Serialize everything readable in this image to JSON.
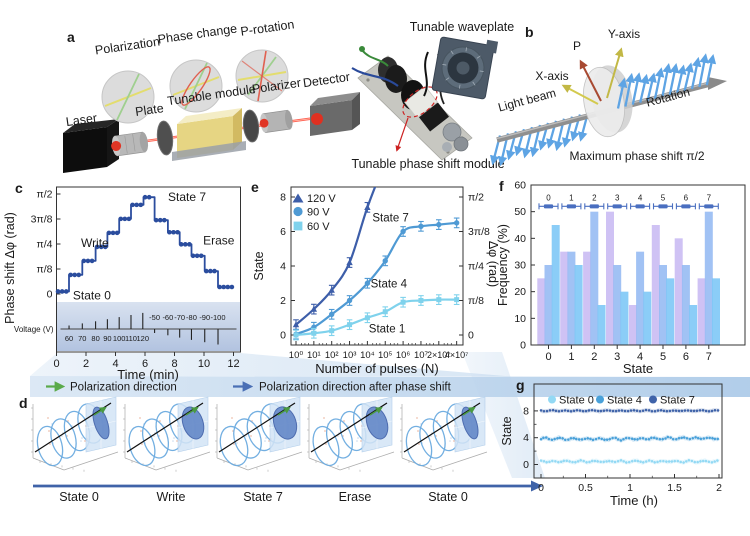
{
  "panels": {
    "a": {
      "letter": "a",
      "circle_labels": [
        "Polarization",
        "Phase change",
        "P-rotation"
      ],
      "bench_labels": [
        "Laser",
        "Plate",
        "Tunable module",
        "Polarizer",
        "Detector"
      ],
      "waveplate_label": "Tunable waveplate",
      "module_label": "Tunable phase shift module"
    },
    "b": {
      "letter": "b",
      "p_label": "P",
      "y_axis_label": "Y-axis",
      "x_axis_label": "X-axis",
      "beam_label": "Light beam",
      "rotation_label": "Rotation",
      "caption": "Maximum phase shift π/2"
    },
    "c": {
      "letter": "c"
    },
    "d": {
      "letter": "d",
      "legend": [
        {
          "label": "Polarization direction",
          "color": "#5aaa4a"
        },
        {
          "label": "Polarization direction after phase shift",
          "color": "#4a6fb5"
        }
      ],
      "sequence_labels": [
        "State 0",
        "Write",
        "State 7",
        "Erase",
        "State 0"
      ]
    },
    "e": {
      "letter": "e"
    },
    "f": {
      "letter": "f"
    },
    "g": {
      "letter": "g"
    }
  },
  "chart_data": [
    {
      "id": "c",
      "type": "line-steps",
      "ylabel": "Phase shift Δφ (rad)",
      "xlabel": "Time (min)",
      "ytick_labels": [
        "0",
        "π/8",
        "π/4",
        "3π/8",
        "π/2"
      ],
      "ytick_values": [
        0,
        0.3927,
        0.7854,
        1.1781,
        1.5708
      ],
      "xticks": [
        0,
        2,
        4,
        6,
        8,
        10,
        12
      ],
      "xlim": [
        0,
        12
      ],
      "ylim": [
        0,
        1.5708
      ],
      "line_color": "#2b4d9e",
      "step_times": [
        0,
        0.85,
        1.75,
        2.65,
        3.45,
        4.25,
        5.05,
        5.9,
        6.65,
        7.55,
        8.35,
        9.15,
        10.05,
        10.95,
        12
      ],
      "step_levels": [
        0.04,
        0.3,
        0.52,
        0.74,
        0.96,
        1.18,
        1.4,
        1.52,
        1.16,
        0.97,
        0.78,
        0.6,
        0.36,
        0.11
      ],
      "annotations": [
        {
          "text": "Write",
          "x": 2.6,
          "y": 0.8
        },
        {
          "text": "Erase",
          "x": 11.0,
          "y": 0.84
        },
        {
          "text": "State 7",
          "x": 8.85,
          "y": 1.52
        },
        {
          "text": "State 0",
          "x": 2.4,
          "y": -0.02
        }
      ],
      "voltage_inset": {
        "label": "Voltage (V)",
        "up_labels": [
          "60",
          "70",
          "80",
          "90",
          "100",
          "110",
          "120"
        ],
        "up_times": [
          0.85,
          1.75,
          2.65,
          3.45,
          4.25,
          5.05,
          5.85
        ],
        "down_labels": [
          "-50",
          "-60",
          "-70",
          "-80",
          "-90",
          "-100"
        ],
        "down_times": [
          6.65,
          7.55,
          8.35,
          9.15,
          10.05,
          10.95
        ]
      }
    },
    {
      "id": "e",
      "type": "line",
      "xlabel": "Number of pulses (N)",
      "ylabel_left": "State",
      "ylabel_right": "Δφ (rad)",
      "xtick_labels": [
        "10⁰",
        "10¹",
        "10²",
        "10³",
        "10⁴",
        "10⁵",
        "10⁶",
        "10⁷",
        "2×10⁷",
        "4×10⁷"
      ],
      "ytick_left": [
        "0",
        "2",
        "4",
        "6",
        "8"
      ],
      "ytick_right": [
        "0",
        "π/8",
        "π/4",
        "3π/8",
        "π/2"
      ],
      "ylim": [
        0,
        8.6
      ],
      "error_bar": 0.28,
      "series": [
        {
          "name": "120 V",
          "marker": "triangle",
          "color": "#3d5ea9",
          "values": [
            0.6,
            1.5,
            2.6,
            4.2,
            7.4
          ],
          "extend": [
            5.05,
            10.2
          ]
        },
        {
          "name": "90 V",
          "marker": "circle",
          "color": "#4f9ad4",
          "values": [
            0.05,
            0.45,
            1.2,
            2.0,
            3.0,
            4.3,
            6.0,
            6.3,
            6.4,
            6.5
          ]
        },
        {
          "name": "60 V",
          "marker": "square",
          "color": "#7fd2ec",
          "values": [
            0,
            0.1,
            0.25,
            0.6,
            1.0,
            1.35,
            1.9,
            2.0,
            2.05,
            2.05
          ]
        }
      ],
      "annotations": [
        {
          "text": "State 7",
          "xi": 5.3,
          "v": 6.8
        },
        {
          "text": "State 4",
          "xi": 5.2,
          "v": 3.0
        },
        {
          "text": "State 1",
          "xi": 5.1,
          "v": 0.38
        }
      ]
    },
    {
      "id": "f",
      "type": "bar",
      "xlabel": "State",
      "ylabel": "Frequency (%)",
      "categories": [
        "0",
        "1",
        "2",
        "3",
        "4",
        "5",
        "6",
        "7"
      ],
      "ytick_values": [
        0,
        10,
        20,
        30,
        40,
        50,
        60
      ],
      "ylim": [
        0,
        60
      ],
      "bar_colors": [
        "#c8b9f2",
        "#94baf2",
        "#7bc6f6"
      ],
      "values": [
        [
          25,
          30,
          45
        ],
        [
          35,
          35,
          30
        ],
        [
          35,
          50,
          15
        ],
        [
          50,
          30,
          20
        ],
        [
          15,
          35,
          20
        ],
        [
          45,
          30,
          25
        ],
        [
          40,
          30,
          15
        ],
        [
          25,
          50,
          25
        ]
      ],
      "top_markers": {
        "y": 52,
        "labels": [
          "0",
          "1",
          "2",
          "3",
          "4",
          "5",
          "6",
          "7"
        ],
        "color": "#4a6fc0"
      }
    },
    {
      "id": "g",
      "type": "line",
      "xlabel": "Time (h)",
      "ylabel": "State",
      "xtick_labels": [
        "0",
        "0.5",
        "1",
        "1.5",
        "2"
      ],
      "xtick_values": [
        0,
        0.5,
        1,
        1.5,
        2
      ],
      "ytick_values": [
        0,
        4,
        8
      ],
      "xlim": [
        0,
        2
      ],
      "ylim": [
        -1,
        9.5
      ],
      "series": [
        {
          "name": "State 0",
          "color": "#93d9f4",
          "base": 0.45,
          "noise_amp": 0.22
        },
        {
          "name": "State 4",
          "color": "#4aa1d9",
          "base": 3.92,
          "noise_amp": 0.26
        },
        {
          "name": "State 7",
          "color": "#3f63a9",
          "base": 8.02,
          "noise_amp": 0.13
        }
      ]
    }
  ]
}
